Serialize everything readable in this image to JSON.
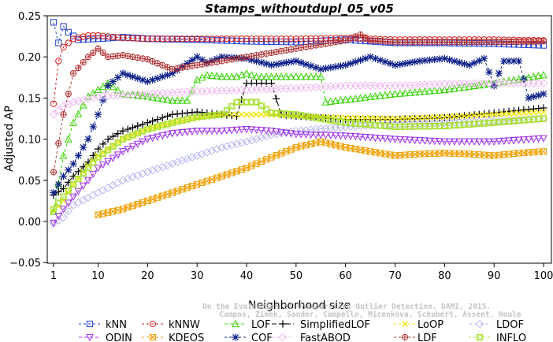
{
  "chart_data": {
    "type": "line",
    "title": "Stamps_withoutdupl_05_v05",
    "xlabel": "Neighborhood size",
    "ylabel": "Adjusted AP",
    "xlim": [
      0,
      100
    ],
    "ylim": [
      -0.05,
      0.25
    ],
    "xticks": [
      1,
      10,
      20,
      30,
      40,
      50,
      60,
      70,
      80,
      90,
      100
    ],
    "yticks": [
      -0.05,
      0.0,
      0.05,
      0.1,
      0.15,
      0.2,
      0.25
    ],
    "ytick_labels": [
      "−0.05",
      "0.00",
      "0.05",
      "0.10",
      "0.15",
      "0.20",
      "0.25"
    ],
    "grid": false,
    "legend_position": "bottom",
    "watermark": [
      "On the Evaluation of Unsupervised Outlier Detection. DAMI, 2015.",
      "Campos, Zimek, Sander, Campello, Micenkova, Schubert, Assent, Houle"
    ],
    "series": [
      {
        "name": "kNN",
        "color": "#1f3fd6",
        "marker": "square",
        "dash": "3,3",
        "points": [
          [
            1,
            0.242
          ],
          [
            2,
            0.217
          ],
          [
            3,
            0.237
          ],
          [
            4,
            0.23
          ],
          [
            6,
            0.221
          ],
          [
            10,
            0.222
          ],
          [
            15,
            0.224
          ],
          [
            20,
            0.222
          ],
          [
            30,
            0.221
          ],
          [
            40,
            0.219
          ],
          [
            50,
            0.218
          ],
          [
            60,
            0.221
          ],
          [
            70,
            0.217
          ],
          [
            80,
            0.217
          ],
          [
            90,
            0.216
          ],
          [
            100,
            0.214
          ]
        ]
      },
      {
        "name": "kNNW",
        "color": "#d42020",
        "marker": "circle",
        "dash": "3,3",
        "points": [
          [
            1,
            0.143
          ],
          [
            2,
            0.195
          ],
          [
            3,
            0.212
          ],
          [
            5,
            0.222
          ],
          [
            8,
            0.226
          ],
          [
            10,
            0.226
          ],
          [
            15,
            0.223
          ],
          [
            20,
            0.222
          ],
          [
            30,
            0.222
          ],
          [
            40,
            0.222
          ],
          [
            50,
            0.222
          ],
          [
            60,
            0.223
          ],
          [
            70,
            0.221
          ],
          [
            80,
            0.221
          ],
          [
            90,
            0.221
          ],
          [
            100,
            0.22
          ]
        ]
      },
      {
        "name": "LOF",
        "color": "#33d400",
        "marker": "triangle",
        "dash": "4,3",
        "points": [
          [
            1,
            0.012
          ],
          [
            3,
            0.08
          ],
          [
            5,
            0.12
          ],
          [
            8,
            0.152
          ],
          [
            10,
            0.16
          ],
          [
            12,
            0.168
          ],
          [
            15,
            0.155
          ],
          [
            20,
            0.152
          ],
          [
            25,
            0.147
          ],
          [
            28,
            0.147
          ],
          [
            30,
            0.172
          ],
          [
            32,
            0.178
          ],
          [
            35,
            0.176
          ],
          [
            38,
            0.176
          ],
          [
            40,
            0.18
          ],
          [
            42,
            0.176
          ],
          [
            45,
            0.176
          ],
          [
            50,
            0.176
          ],
          [
            55,
            0.176
          ],
          [
            56,
            0.145
          ],
          [
            60,
            0.148
          ],
          [
            70,
            0.155
          ],
          [
            80,
            0.16
          ],
          [
            90,
            0.168
          ],
          [
            100,
            0.178
          ]
        ]
      },
      {
        "name": "SimplifiedLOF",
        "color": "#000000",
        "marker": "plus",
        "dash": "6,3",
        "points": [
          [
            1,
            0.032
          ],
          [
            3,
            0.04
          ],
          [
            5,
            0.055
          ],
          [
            8,
            0.072
          ],
          [
            10,
            0.088
          ],
          [
            12,
            0.1
          ],
          [
            15,
            0.11
          ],
          [
            20,
            0.12
          ],
          [
            25,
            0.13
          ],
          [
            30,
            0.133
          ],
          [
            35,
            0.13
          ],
          [
            38,
            0.128
          ],
          [
            40,
            0.168
          ],
          [
            42,
            0.168
          ],
          [
            45,
            0.168
          ],
          [
            47,
            0.13
          ],
          [
            50,
            0.128
          ],
          [
            60,
            0.124
          ],
          [
            70,
            0.124
          ],
          [
            80,
            0.126
          ],
          [
            90,
            0.132
          ],
          [
            100,
            0.138
          ]
        ]
      },
      {
        "name": "LoOP",
        "color": "#f2e600",
        "marker": "x",
        "dash": "3,3",
        "points": [
          [
            1,
            0.012
          ],
          [
            3,
            0.025
          ],
          [
            5,
            0.045
          ],
          [
            8,
            0.068
          ],
          [
            10,
            0.08
          ],
          [
            15,
            0.1
          ],
          [
            20,
            0.112
          ],
          [
            25,
            0.12
          ],
          [
            30,
            0.126
          ],
          [
            35,
            0.13
          ],
          [
            40,
            0.13
          ],
          [
            45,
            0.13
          ],
          [
            50,
            0.128
          ],
          [
            60,
            0.126
          ],
          [
            70,
            0.125
          ],
          [
            80,
            0.127
          ],
          [
            90,
            0.13
          ],
          [
            100,
            0.133
          ]
        ]
      },
      {
        "name": "LDOF",
        "color": "#b8b8f0",
        "marker": "diamond",
        "dash": "4,3",
        "points": [
          [
            1,
            -0.002
          ],
          [
            3,
            0.005
          ],
          [
            5,
            0.02
          ],
          [
            10,
            0.035
          ],
          [
            15,
            0.05
          ],
          [
            20,
            0.06
          ],
          [
            25,
            0.07
          ],
          [
            30,
            0.08
          ],
          [
            35,
            0.09
          ],
          [
            40,
            0.097
          ],
          [
            45,
            0.105
          ],
          [
            50,
            0.11
          ],
          [
            60,
            0.115
          ],
          [
            70,
            0.118
          ],
          [
            80,
            0.12
          ],
          [
            90,
            0.122
          ],
          [
            100,
            0.125
          ]
        ]
      },
      {
        "name": "ODIN",
        "color": "#a030e8",
        "marker": "triangle-down",
        "dash": "4,3",
        "points": [
          [
            1,
            -0.002
          ],
          [
            3,
            0.015
          ],
          [
            5,
            0.03
          ],
          [
            8,
            0.05
          ],
          [
            10,
            0.065
          ],
          [
            15,
            0.085
          ],
          [
            20,
            0.1
          ],
          [
            25,
            0.107
          ],
          [
            30,
            0.11
          ],
          [
            35,
            0.11
          ],
          [
            40,
            0.112
          ],
          [
            45,
            0.11
          ],
          [
            50,
            0.106
          ],
          [
            60,
            0.104
          ],
          [
            70,
            0.1
          ],
          [
            80,
            0.097
          ],
          [
            90,
            0.097
          ],
          [
            100,
            0.101
          ]
        ]
      },
      {
        "name": "KDEOS",
        "color": "#f0a000",
        "marker": "box-x",
        "dash": "3,3",
        "points": [
          [
            10,
            0.008
          ],
          [
            15,
            0.015
          ],
          [
            20,
            0.025
          ],
          [
            25,
            0.035
          ],
          [
            30,
            0.045
          ],
          [
            35,
            0.055
          ],
          [
            40,
            0.065
          ],
          [
            45,
            0.078
          ],
          [
            50,
            0.09
          ],
          [
            55,
            0.097
          ],
          [
            60,
            0.09
          ],
          [
            65,
            0.085
          ],
          [
            70,
            0.08
          ],
          [
            75,
            0.082
          ],
          [
            80,
            0.083
          ],
          [
            85,
            0.082
          ],
          [
            90,
            0.08
          ],
          [
            95,
            0.083
          ],
          [
            100,
            0.085
          ]
        ]
      },
      {
        "name": "COF",
        "color": "#0b1f8a",
        "marker": "asterisk",
        "dash": "3,3",
        "points": [
          [
            1,
            0.035
          ],
          [
            3,
            0.055
          ],
          [
            5,
            0.07
          ],
          [
            8,
            0.1
          ],
          [
            10,
            0.13
          ],
          [
            12,
            0.165
          ],
          [
            15,
            0.18
          ],
          [
            20,
            0.17
          ],
          [
            25,
            0.18
          ],
          [
            30,
            0.2
          ],
          [
            32,
            0.193
          ],
          [
            35,
            0.2
          ],
          [
            40,
            0.198
          ],
          [
            45,
            0.19
          ],
          [
            50,
            0.195
          ],
          [
            55,
            0.185
          ],
          [
            60,
            0.19
          ],
          [
            65,
            0.2
          ],
          [
            70,
            0.19
          ],
          [
            75,
            0.195
          ],
          [
            80,
            0.198
          ],
          [
            85,
            0.19
          ],
          [
            88,
            0.198
          ],
          [
            90,
            0.165
          ],
          [
            92,
            0.195
          ],
          [
            95,
            0.195
          ],
          [
            97,
            0.15
          ],
          [
            100,
            0.155
          ]
        ]
      },
      {
        "name": "FastABOD",
        "color": "#f0b8f0",
        "marker": "diamond",
        "dash": "4,3",
        "points": [
          [
            1,
            0.13
          ],
          [
            3,
            0.14
          ],
          [
            5,
            0.145
          ],
          [
            10,
            0.152
          ],
          [
            20,
            0.155
          ],
          [
            30,
            0.158
          ],
          [
            40,
            0.16
          ],
          [
            50,
            0.162
          ],
          [
            60,
            0.165
          ],
          [
            70,
            0.165
          ],
          [
            80,
            0.167
          ],
          [
            90,
            0.168
          ],
          [
            100,
            0.168
          ]
        ]
      },
      {
        "name": "LDF",
        "color": "#b03030",
        "marker": "circle-plus",
        "dash": "3,3",
        "points": [
          [
            1,
            0.06
          ],
          [
            3,
            0.13
          ],
          [
            5,
            0.18
          ],
          [
            8,
            0.2
          ],
          [
            10,
            0.21
          ],
          [
            12,
            0.2
          ],
          [
            15,
            0.202
          ],
          [
            20,
            0.197
          ],
          [
            25,
            0.185
          ],
          [
            30,
            0.19
          ],
          [
            35,
            0.195
          ],
          [
            40,
            0.2
          ],
          [
            45,
            0.205
          ],
          [
            50,
            0.21
          ],
          [
            55,
            0.215
          ],
          [
            60,
            0.22
          ],
          [
            63,
            0.227
          ],
          [
            65,
            0.22
          ],
          [
            70,
            0.218
          ],
          [
            80,
            0.218
          ],
          [
            90,
            0.218
          ],
          [
            100,
            0.219
          ]
        ]
      },
      {
        "name": "INFLO",
        "color": "#a8e030",
        "marker": "box-circle",
        "dash": "3,3",
        "points": [
          [
            1,
            0.015
          ],
          [
            3,
            0.03
          ],
          [
            5,
            0.045
          ],
          [
            8,
            0.065
          ],
          [
            10,
            0.078
          ],
          [
            15,
            0.1
          ],
          [
            20,
            0.112
          ],
          [
            25,
            0.12
          ],
          [
            30,
            0.127
          ],
          [
            35,
            0.13
          ],
          [
            38,
            0.145
          ],
          [
            40,
            0.145
          ],
          [
            42,
            0.145
          ],
          [
            45,
            0.132
          ],
          [
            50,
            0.13
          ],
          [
            60,
            0.12
          ],
          [
            70,
            0.115
          ],
          [
            80,
            0.116
          ],
          [
            90,
            0.12
          ],
          [
            100,
            0.125
          ]
        ]
      }
    ]
  }
}
